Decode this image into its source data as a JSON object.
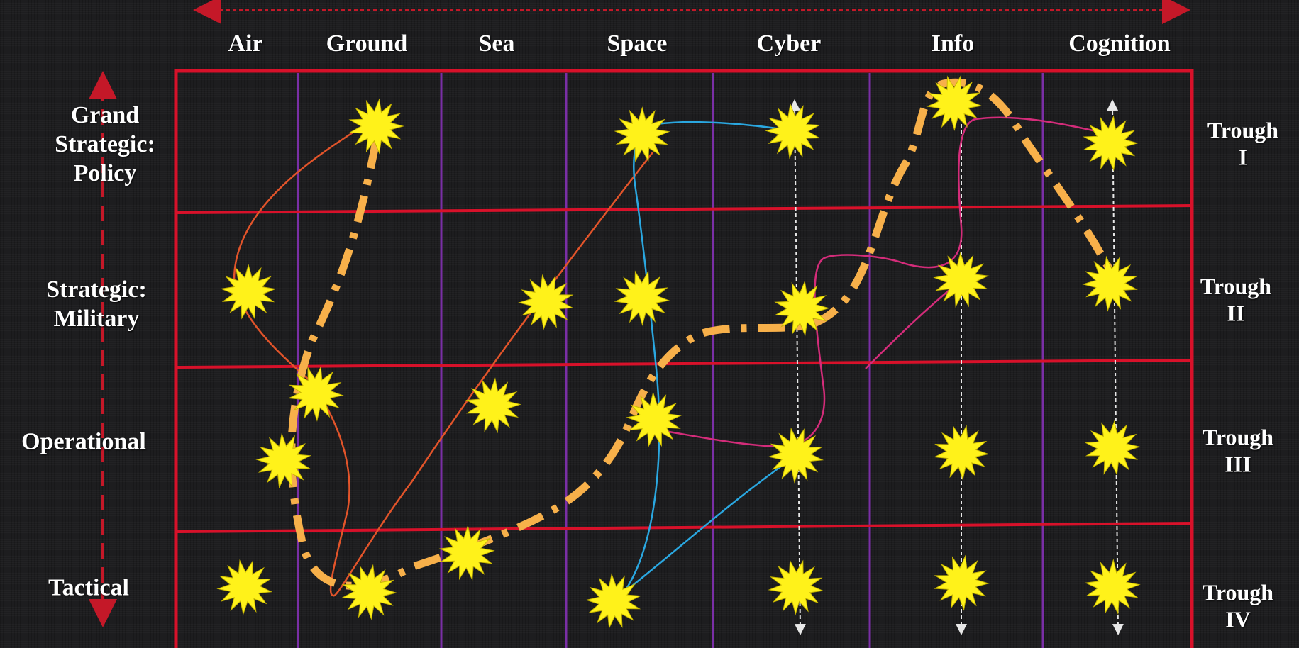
{
  "columns": [
    "Air",
    "Ground",
    "Sea",
    "Space",
    "Cyber",
    "Info",
    "Cognition"
  ],
  "rows": [
    {
      "lines": [
        "Grand",
        "Strategic:",
        "Policy"
      ]
    },
    {
      "lines": [
        "Strategic:",
        "Military"
      ]
    },
    {
      "lines": [
        "Operational"
      ]
    },
    {
      "lines": [
        "Tactical"
      ]
    }
  ],
  "troughs": [
    {
      "line1": "Trough",
      "line2": "I"
    },
    {
      "line1": "Trough",
      "line2": "II"
    },
    {
      "line1": "Trough",
      "line2": "III"
    },
    {
      "line1": "Trough",
      "line2": "IV"
    }
  ],
  "colors": {
    "grid_border": "#d8112a",
    "column_divider": "#7a2fa6",
    "star_fill": "#fff21a",
    "dash_dot_path": "#f7b04a",
    "orange_path": "#e2542a",
    "blue_path": "#2aa7e0",
    "magenta_path": "#d42c7a",
    "trough_arrow": "#e8e8e8",
    "axis_arrow": "#c41828"
  },
  "icons": {
    "event": "starburst-icon",
    "axis": "double-headed-dotted-arrow"
  }
}
